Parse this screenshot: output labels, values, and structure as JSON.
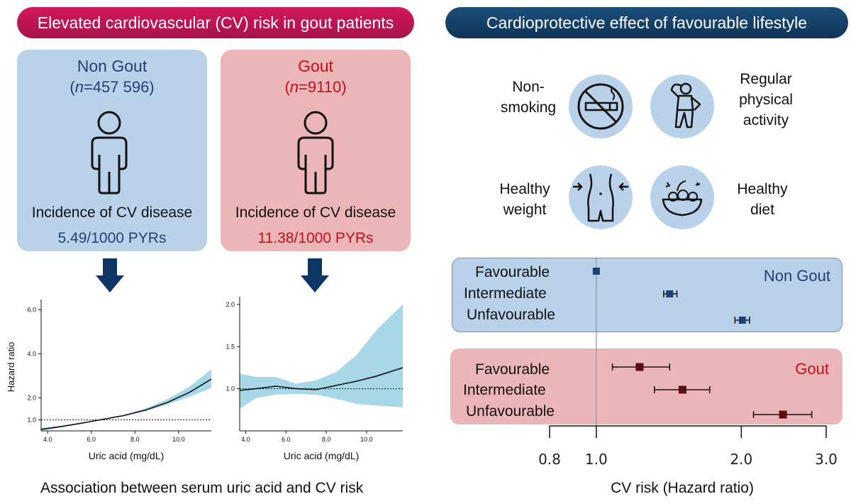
{
  "left_header": "Elevated cardiovascular (CV) risk in gout patients",
  "right_header": "Cardioprotective effect of favourable lifestyle",
  "non_gout_card": {
    "title": "Non Gout",
    "n_symbol": "n",
    "n_value": "=457 596)",
    "n_open": "(",
    "incidence_label": "Incidence of CV disease",
    "rate": "5.49/1000 PYRs"
  },
  "gout_card": {
    "title": "Gout",
    "n_symbol": "n",
    "n_value": "=9110)",
    "n_open": "(",
    "incidence_label": "Incidence of CV disease",
    "rate": "11.38/1000 PYRs"
  },
  "lifestyle": {
    "non_smoking_1": "Non-",
    "non_smoking_2": "smoking",
    "activity_1": "Regular",
    "activity_2": "physical",
    "activity_3": "activity",
    "weight_1": "Healthy",
    "weight_2": "weight",
    "diet_1": "Healthy",
    "diet_2": "diet"
  },
  "colors": {
    "non_gout": "#243f75",
    "gout": "#c0101a",
    "band_blue": "#b9d2ea",
    "band_red": "#ecb5b7",
    "spline_fill": "#a8d8e8"
  },
  "left_caption": "Association between serum uric acid and CV risk",
  "chart_data": [
    {
      "type": "line",
      "title": "Non Gout",
      "xlabel": "Uric acid (mg/dL)",
      "ylabel": "Hazard ratio",
      "xlim": [
        3.7,
        11.5
      ],
      "ylim": [
        0.5,
        6.3
      ],
      "xticks": [
        "4.0",
        "6.0",
        "8.0",
        "10.0"
      ],
      "xtick_values": [
        4.0,
        6.0,
        8.0,
        10.0
      ],
      "yticks": [
        "1.0",
        "2.0",
        "4.0",
        "6.0"
      ],
      "ytick_values": [
        1.0,
        2.0,
        4.0,
        6.0
      ],
      "reference_line": 1.0,
      "x": [
        3.7,
        4.5,
        5.5,
        6.5,
        7.5,
        8.5,
        9.5,
        10.5,
        11.5
      ],
      "estimate": [
        0.57,
        0.68,
        0.84,
        1.02,
        1.2,
        1.45,
        1.8,
        2.25,
        2.85
      ],
      "lower": [
        0.5,
        0.64,
        0.82,
        1.0,
        1.18,
        1.4,
        1.7,
        2.05,
        2.45
      ],
      "upper": [
        0.62,
        0.72,
        0.86,
        1.04,
        1.22,
        1.52,
        1.95,
        2.5,
        3.3
      ]
    },
    {
      "type": "line",
      "title": "Gout",
      "xlabel": "Uric acid (mg/dL)",
      "ylabel": "",
      "xlim": [
        3.7,
        11.8
      ],
      "ylim": [
        0.5,
        2.05
      ],
      "xticks": [
        "4.0",
        "6.0",
        "8.0",
        "10.0"
      ],
      "xtick_values": [
        4.0,
        6.0,
        8.0,
        10.0
      ],
      "yticks": [
        "1.0",
        "1.5",
        "2.0"
      ],
      "ytick_values": [
        1.0,
        1.5,
        2.0
      ],
      "reference_line": 1.0,
      "x": [
        3.7,
        4.5,
        5.5,
        6.5,
        7.5,
        8.5,
        9.5,
        10.5,
        11.8
      ],
      "estimate": [
        0.98,
        1.0,
        1.03,
        1.0,
        0.99,
        1.04,
        1.09,
        1.15,
        1.25
      ],
      "lower": [
        0.76,
        0.89,
        0.93,
        0.94,
        0.93,
        0.88,
        0.82,
        0.8,
        0.78
      ],
      "upper": [
        1.18,
        1.14,
        1.14,
        1.06,
        1.1,
        1.2,
        1.4,
        1.7,
        2.0
      ]
    },
    {
      "type": "scatter",
      "title": "CV risk (Hazard ratio) forest plot",
      "xlabel": "CV risk (Hazard ratio)",
      "xscale": "log",
      "xlim": [
        0.8,
        3.0
      ],
      "xticks": [
        "0.8",
        "1.0",
        "2.0",
        "3.0"
      ],
      "xtick_values": [
        0.8,
        1.0,
        2.0,
        3.0
      ],
      "reference_line": 1.0,
      "series": [
        {
          "name": "Non Gout",
          "labels": [
            "Favourable",
            "Intermediate",
            "Unfavourable"
          ],
          "hr": [
            1.0,
            1.42,
            2.01
          ],
          "ci_low": [
            1.0,
            1.38,
            1.94
          ],
          "ci_high": [
            1.0,
            1.47,
            2.08
          ]
        },
        {
          "name": "Gout",
          "labels": [
            "Favourable",
            "Intermediate",
            "Unfavourable"
          ],
          "hr": [
            1.23,
            1.51,
            2.44
          ],
          "ci_low": [
            1.08,
            1.32,
            2.12
          ],
          "ci_high": [
            1.42,
            1.72,
            2.8
          ]
        }
      ]
    }
  ]
}
